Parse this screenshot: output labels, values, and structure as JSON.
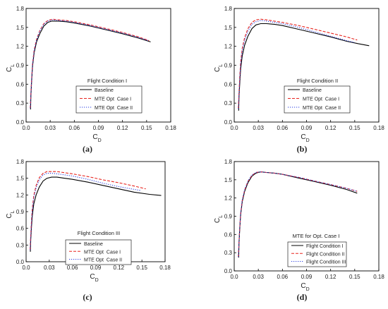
{
  "chart_data": [
    {
      "type": "line",
      "panel_label": "(a)",
      "caption": "(a)",
      "xlabel": "C_D",
      "ylabel": "C_L",
      "xlim": [
        0,
        0.18
      ],
      "ylim": [
        0,
        1.8
      ],
      "xticks": [
        "0.0",
        "0.03",
        "0.06",
        "0.09",
        "0.12",
        "0.15",
        "0.18"
      ],
      "yticks": [
        "0.0",
        "0.3",
        "0.6",
        "0.9",
        "1.2",
        "1.5",
        "1.8"
      ],
      "legend_title": "Flight Condition I",
      "legend_position": "center-right",
      "series": [
        {
          "name": "Baseline",
          "color": "#000000",
          "dash": "solid",
          "x": [
            0.0055,
            0.006,
            0.007,
            0.008,
            0.01,
            0.013,
            0.017,
            0.022,
            0.027,
            0.032,
            0.04,
            0.05,
            0.06,
            0.08,
            0.1,
            0.12,
            0.14,
            0.155
          ],
          "y": [
            0.2,
            0.42,
            0.68,
            0.88,
            1.1,
            1.27,
            1.4,
            1.52,
            1.58,
            1.6,
            1.6,
            1.59,
            1.57,
            1.52,
            1.46,
            1.4,
            1.33,
            1.27
          ]
        },
        {
          "name": "MTE Opt  Case I",
          "color": "#e8251f",
          "dash": "dash",
          "x": [
            0.0052,
            0.006,
            0.007,
            0.008,
            0.01,
            0.013,
            0.017,
            0.022,
            0.027,
            0.033,
            0.04,
            0.05,
            0.06,
            0.08,
            0.1,
            0.12,
            0.14,
            0.153
          ],
          "y": [
            0.22,
            0.46,
            0.72,
            0.92,
            1.14,
            1.31,
            1.45,
            1.56,
            1.61,
            1.63,
            1.62,
            1.61,
            1.59,
            1.54,
            1.48,
            1.42,
            1.35,
            1.29
          ]
        },
        {
          "name": "MTE Opt  Case II",
          "color": "#2a3ee0",
          "dash": "dot",
          "x": [
            0.0052,
            0.006,
            0.007,
            0.008,
            0.01,
            0.013,
            0.017,
            0.022,
            0.027,
            0.033,
            0.04,
            0.05,
            0.06,
            0.08,
            0.1,
            0.12,
            0.14,
            0.152
          ],
          "y": [
            0.22,
            0.45,
            0.71,
            0.91,
            1.13,
            1.3,
            1.44,
            1.55,
            1.6,
            1.62,
            1.61,
            1.6,
            1.58,
            1.53,
            1.47,
            1.41,
            1.34,
            1.29
          ]
        }
      ]
    },
    {
      "type": "line",
      "panel_label": "(b)",
      "caption": "(b)",
      "xlabel": "C_D",
      "ylabel": "C_L",
      "xlim": [
        0,
        0.18
      ],
      "ylim": [
        0,
        1.8
      ],
      "xticks": [
        "0.0",
        "0.03",
        "0.06",
        "0.09",
        "0.12",
        "0.15",
        "0.18"
      ],
      "yticks": [
        "0.0",
        "0.3",
        "0.6",
        "0.9",
        "1.2",
        "1.5",
        "1.8"
      ],
      "legend_title": "Flight Condition II",
      "legend_position": "center-right",
      "series": [
        {
          "name": "Baseline",
          "color": "#000000",
          "dash": "solid",
          "x": [
            0.0055,
            0.006,
            0.007,
            0.008,
            0.01,
            0.013,
            0.017,
            0.022,
            0.027,
            0.033,
            0.04,
            0.05,
            0.06,
            0.08,
            0.1,
            0.12,
            0.14,
            0.155,
            0.168
          ],
          "y": [
            0.18,
            0.4,
            0.64,
            0.84,
            1.05,
            1.22,
            1.36,
            1.48,
            1.54,
            1.56,
            1.56,
            1.55,
            1.53,
            1.47,
            1.41,
            1.35,
            1.28,
            1.24,
            1.21
          ]
        },
        {
          "name": "MTE Opt  Case I",
          "color": "#e8251f",
          "dash": "dash",
          "x": [
            0.0052,
            0.006,
            0.007,
            0.008,
            0.01,
            0.013,
            0.017,
            0.022,
            0.027,
            0.033,
            0.04,
            0.05,
            0.06,
            0.08,
            0.1,
            0.12,
            0.14,
            0.153
          ],
          "y": [
            0.22,
            0.47,
            0.74,
            0.95,
            1.17,
            1.34,
            1.48,
            1.58,
            1.62,
            1.63,
            1.62,
            1.6,
            1.58,
            1.53,
            1.47,
            1.41,
            1.35,
            1.3
          ]
        },
        {
          "name": "MTE Opt  Case II",
          "color": "#2a3ee0",
          "dash": "dot",
          "x": [
            0.0052,
            0.006,
            0.007,
            0.008,
            0.01,
            0.013,
            0.017,
            0.022,
            0.027,
            0.033,
            0.04,
            0.05,
            0.06,
            0.08,
            0.1,
            0.12,
            0.14,
            0.15
          ],
          "y": [
            0.21,
            0.45,
            0.71,
            0.91,
            1.13,
            1.3,
            1.44,
            1.55,
            1.59,
            1.61,
            1.6,
            1.58,
            1.56,
            1.5,
            1.43,
            1.36,
            1.29,
            1.26
          ]
        }
      ]
    },
    {
      "type": "line",
      "panel_label": "(c)",
      "caption": "(c)",
      "xlabel": "C_D",
      "ylabel": "C_L",
      "xlim": [
        0,
        0.18
      ],
      "ylim": [
        0,
        1.8
      ],
      "xticks": [
        "0.0",
        "0.03",
        "0.06",
        "0.09",
        "0.12",
        "0.15",
        "0.18"
      ],
      "yticks": [
        "0.0",
        "0.3",
        "0.6",
        "0.9",
        "1.2",
        "1.5",
        "1.8"
      ],
      "legend_title": "Flight Condition III",
      "legend_position": "center-right",
      "series": [
        {
          "name": "Baseline",
          "color": "#000000",
          "dash": "solid",
          "x": [
            0.0055,
            0.006,
            0.007,
            0.008,
            0.01,
            0.013,
            0.017,
            0.022,
            0.027,
            0.033,
            0.04,
            0.05,
            0.06,
            0.08,
            0.1,
            0.12,
            0.14,
            0.16,
            0.175
          ],
          "y": [
            0.18,
            0.4,
            0.64,
            0.83,
            1.04,
            1.2,
            1.34,
            1.45,
            1.5,
            1.52,
            1.52,
            1.5,
            1.48,
            1.43,
            1.37,
            1.31,
            1.25,
            1.21,
            1.19
          ]
        },
        {
          "name": "MTE Opt  Case I",
          "color": "#e8251f",
          "dash": "dash",
          "x": [
            0.0052,
            0.006,
            0.007,
            0.008,
            0.01,
            0.013,
            0.017,
            0.022,
            0.027,
            0.033,
            0.04,
            0.05,
            0.06,
            0.08,
            0.1,
            0.12,
            0.14,
            0.155
          ],
          "y": [
            0.22,
            0.48,
            0.75,
            0.96,
            1.19,
            1.37,
            1.51,
            1.59,
            1.62,
            1.62,
            1.62,
            1.6,
            1.58,
            1.53,
            1.47,
            1.42,
            1.36,
            1.31
          ]
        },
        {
          "name": "MTE Opt  Case II",
          "color": "#2a3ee0",
          "dash": "dot",
          "x": [
            0.0052,
            0.006,
            0.007,
            0.008,
            0.01,
            0.013,
            0.017,
            0.022,
            0.027,
            0.033,
            0.04,
            0.05,
            0.06,
            0.08,
            0.1,
            0.12,
            0.14,
            0.148
          ],
          "y": [
            0.21,
            0.46,
            0.72,
            0.92,
            1.15,
            1.33,
            1.47,
            1.56,
            1.59,
            1.59,
            1.58,
            1.56,
            1.54,
            1.48,
            1.41,
            1.35,
            1.3,
            1.28
          ]
        }
      ]
    },
    {
      "type": "line",
      "panel_label": "(d)",
      "caption": "(d)",
      "xlabel": "C_D",
      "ylabel": "C_L",
      "xlim": [
        0,
        0.18
      ],
      "ylim": [
        0,
        1.8
      ],
      "xticks": [
        "0.0",
        "0.03",
        "0.06",
        "0.09",
        "0.12",
        "0.15",
        "0.18"
      ],
      "yticks": [
        "0.0",
        "0.3",
        "0.6",
        "0.9",
        "1.2",
        "1.5",
        "1.8"
      ],
      "legend_title": "MTE for Opt. Case I",
      "legend_position": "lower-right",
      "series": [
        {
          "name": "Flight Condition I",
          "color": "#000000",
          "dash": "solid",
          "x": [
            0.0055,
            0.006,
            0.007,
            0.008,
            0.01,
            0.013,
            0.017,
            0.022,
            0.027,
            0.033,
            0.04,
            0.05,
            0.06,
            0.08,
            0.1,
            0.12,
            0.14,
            0.153
          ],
          "y": [
            0.22,
            0.46,
            0.72,
            0.92,
            1.14,
            1.31,
            1.45,
            1.56,
            1.61,
            1.63,
            1.62,
            1.61,
            1.59,
            1.53,
            1.47,
            1.41,
            1.34,
            1.28
          ]
        },
        {
          "name": "Flight Condition II",
          "color": "#e8251f",
          "dash": "dash",
          "x": [
            0.0052,
            0.006,
            0.007,
            0.008,
            0.01,
            0.013,
            0.017,
            0.022,
            0.027,
            0.033,
            0.04,
            0.05,
            0.06,
            0.08,
            0.1,
            0.12,
            0.14,
            0.153
          ],
          "y": [
            0.23,
            0.48,
            0.74,
            0.94,
            1.16,
            1.33,
            1.47,
            1.57,
            1.62,
            1.63,
            1.62,
            1.61,
            1.59,
            1.54,
            1.48,
            1.42,
            1.36,
            1.31
          ]
        },
        {
          "name": "Flight Condition III",
          "color": "#2a3ee0",
          "dash": "dot",
          "x": [
            0.0052,
            0.006,
            0.007,
            0.008,
            0.01,
            0.013,
            0.017,
            0.022,
            0.027,
            0.033,
            0.04,
            0.05,
            0.06,
            0.08,
            0.1,
            0.12,
            0.14,
            0.153
          ],
          "y": [
            0.23,
            0.48,
            0.75,
            0.95,
            1.17,
            1.34,
            1.48,
            1.58,
            1.62,
            1.63,
            1.62,
            1.61,
            1.59,
            1.54,
            1.48,
            1.42,
            1.36,
            1.31
          ]
        }
      ]
    }
  ]
}
